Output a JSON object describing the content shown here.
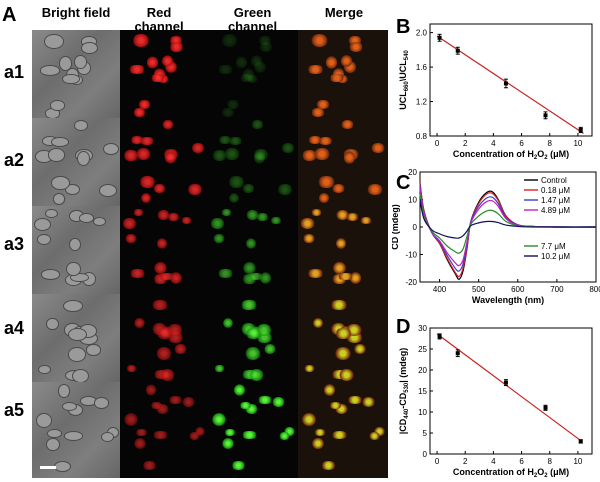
{
  "figure": {
    "panel_A_letter": "A",
    "columns": [
      "Bright field",
      "Red\nchannel",
      "Green\nchannel",
      "Merge"
    ],
    "col_bright": "Bright field",
    "col_red": "Red",
    "col_red2": "channel",
    "col_green": "Green",
    "col_green2": "channel",
    "col_merge": "Merge",
    "rows": [
      "a1",
      "a2",
      "a3",
      "a4",
      "a5"
    ],
    "colors": {
      "red_cells": "#e01818",
      "green_cells": "#2fc81a",
      "merge_cells": "#d8a020",
      "line": "#cc2020"
    }
  },
  "chart_data": [
    {
      "panel": "B",
      "type": "scatter",
      "title": "",
      "xlabel": "Concentration of H2O2 (μM)",
      "ylabel": "UCL660\\UCL540",
      "xlim": [
        -0.5,
        11
      ],
      "ylim": [
        0.8,
        2.1
      ],
      "xticks": [
        "0",
        "2",
        "4",
        "6",
        "8",
        "10"
      ],
      "yticks": [
        "0.8",
        "1.2",
        "1.6",
        "2.0"
      ],
      "x": [
        0.18,
        1.47,
        4.89,
        7.7,
        10.2
      ],
      "y": [
        1.94,
        1.79,
        1.41,
        1.04,
        0.87
      ],
      "err": [
        0.04,
        0.04,
        0.05,
        0.04,
        0.03
      ],
      "fit": {
        "x": [
          0,
          10.4
        ],
        "y": [
          1.96,
          0.83
        ]
      }
    },
    {
      "panel": "C",
      "type": "line",
      "xlabel": "Wavelength (nm)",
      "ylabel": "CD (mdeg)",
      "xlim": [
        350,
        800
      ],
      "ylim": [
        -20,
        20
      ],
      "xticks": [
        "400",
        "500",
        "600",
        "700",
        "800"
      ],
      "yticks": [
        "-20",
        "-10",
        "0",
        "10",
        "20"
      ],
      "series": [
        {
          "name": "Control",
          "color": "#000000",
          "x": [
            350,
            360,
            380,
            400,
            420,
            440,
            450,
            460,
            470,
            480,
            500,
            520,
            535,
            550,
            570,
            600,
            640,
            700,
            800
          ],
          "y": [
            16,
            6,
            -2,
            -6,
            -12,
            -17,
            -19,
            -16,
            -8,
            2,
            9,
            12.5,
            12.8,
            10,
            4,
            0.8,
            0.2,
            0,
            0
          ]
        },
        {
          "name": "0.18 μM",
          "color": "#e02020",
          "x": [
            350,
            360,
            380,
            400,
            420,
            440,
            450,
            460,
            470,
            480,
            500,
            520,
            535,
            550,
            570,
            600,
            640,
            700,
            800
          ],
          "y": [
            16,
            6,
            -2,
            -6,
            -11.5,
            -16.5,
            -18,
            -15,
            -7.5,
            2,
            8.5,
            12,
            12.2,
            9.6,
            3.8,
            0.8,
            0.2,
            0,
            0
          ]
        },
        {
          "name": "1.47 μM",
          "color": "#3040d0",
          "x": [
            350,
            360,
            380,
            400,
            420,
            440,
            450,
            460,
            470,
            480,
            500,
            520,
            535,
            550,
            570,
            600,
            640,
            700,
            800
          ],
          "y": [
            15,
            5.5,
            -2,
            -5.5,
            -10.5,
            -15,
            -16,
            -13.5,
            -6.5,
            2,
            7.5,
            10.5,
            10.8,
            8.5,
            3.4,
            0.7,
            0.2,
            0,
            0
          ]
        },
        {
          "name": "4.89 μM",
          "color": "#c020c0",
          "x": [
            350,
            360,
            380,
            400,
            420,
            440,
            450,
            460,
            470,
            480,
            500,
            520,
            535,
            550,
            570,
            600,
            640,
            700,
            800
          ],
          "y": [
            14,
            5,
            -2,
            -5,
            -9.5,
            -13,
            -14,
            -12,
            -5.5,
            1.5,
            6.5,
            9.2,
            9.5,
            7.5,
            3,
            0.6,
            0.2,
            0,
            0
          ]
        },
        {
          "name": "7.7 μM",
          "color": "#2a8a2a",
          "x": [
            350,
            360,
            380,
            400,
            420,
            440,
            450,
            460,
            470,
            480,
            500,
            520,
            535,
            550,
            570,
            600,
            640,
            700,
            800
          ],
          "y": [
            12,
            4,
            -1.5,
            -4,
            -7,
            -9,
            -9.5,
            -8,
            -3.5,
            1,
            4,
            5.8,
            6,
            4.8,
            2,
            0.4,
            0.1,
            0,
            0
          ]
        },
        {
          "name": "10.2 μM",
          "color": "#101060",
          "x": [
            350,
            360,
            380,
            400,
            420,
            440,
            450,
            460,
            470,
            480,
            500,
            520,
            535,
            550,
            570,
            600,
            640,
            700,
            800
          ],
          "y": [
            10,
            3,
            -1,
            -2.5,
            -3.5,
            -4,
            -4,
            -3.2,
            -1.5,
            0.5,
            1.5,
            2,
            2,
            1.6,
            0.7,
            0.2,
            0,
            0,
            0
          ]
        }
      ]
    },
    {
      "panel": "D",
      "type": "scatter",
      "xlabel": "Concentration of H2O2 (μM)",
      "ylabel": "|CD440-CD530| (mdeg)",
      "xlim": [
        -0.5,
        11
      ],
      "ylim": [
        0,
        30
      ],
      "xticks": [
        "0",
        "2",
        "4",
        "6",
        "8",
        "10"
      ],
      "yticks": [
        "0",
        "5",
        "10",
        "15",
        "20",
        "25",
        "30"
      ],
      "x": [
        0.18,
        1.47,
        4.89,
        7.7,
        10.2
      ],
      "y": [
        28,
        24,
        17,
        11,
        3
      ],
      "err": [
        0.6,
        0.8,
        0.7,
        0.6,
        0.4
      ],
      "fit": {
        "x": [
          0,
          10.2
        ],
        "y": [
          28.6,
          3.2
        ]
      }
    }
  ],
  "panels": {
    "B": {
      "letter": "B",
      "xlabel": "Concentration of H2O2 (μM)",
      "ylabel": "UCL660\\UCL540"
    },
    "C": {
      "letter": "C",
      "xlabel": "Wavelength (nm)",
      "ylabel": "CD (mdeg)"
    },
    "D": {
      "letter": "D",
      "xlabel": "Concentration of H2O2 (μM)",
      "ylabel": "|CD440-CD530| (mdeg)"
    }
  }
}
